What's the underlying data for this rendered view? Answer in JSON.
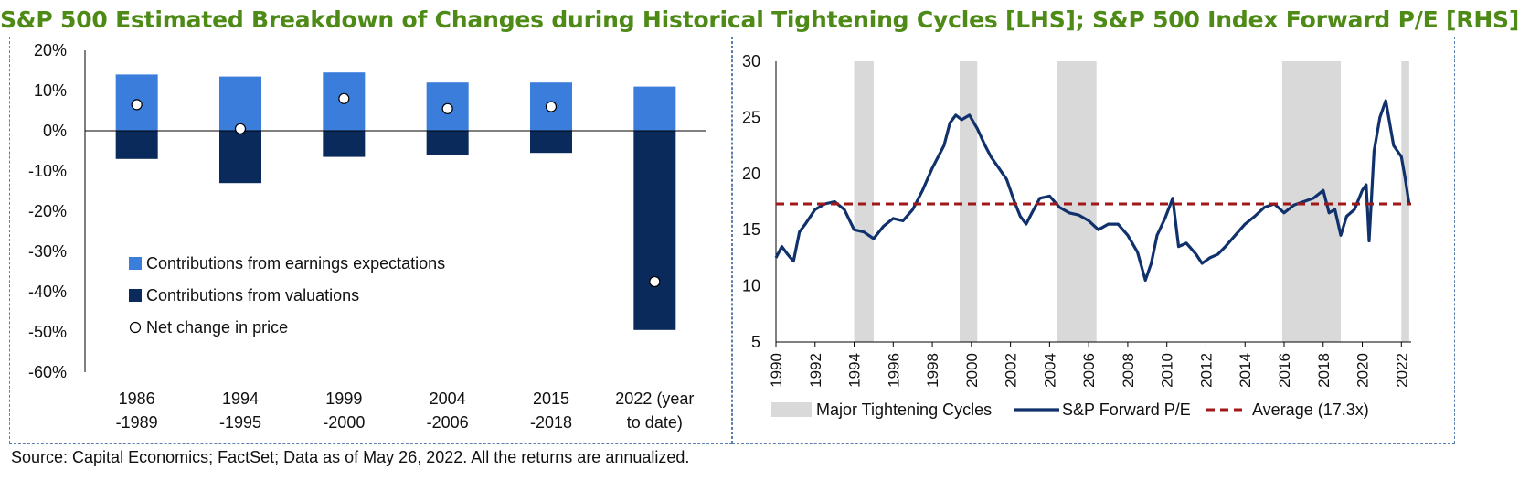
{
  "title": "S&P 500 Estimated Breakdown of Changes during Historical Tightening Cycles [LHS]; S&P 500 Index Forward P/E [RHS]",
  "source": "Source: Capital Economics; FactSet; Data as of May 26, 2022. All the returns are annualized.",
  "colors": {
    "earnings": "#3A7DDB",
    "valuations": "#0B2A5C",
    "pe_line": "#10316B",
    "average": "#A01818",
    "shade": "#D9D9D9",
    "title": "#4E8A16"
  },
  "chart_data": [
    {
      "type": "bar",
      "stacked": true,
      "categories": [
        [
          "1986",
          "-1989"
        ],
        [
          "1994",
          "-1995"
        ],
        [
          "1999",
          "-2000"
        ],
        [
          "2004",
          "-2006"
        ],
        [
          "2015",
          "-2018"
        ],
        [
          "2022 (year",
          "to date)"
        ]
      ],
      "series": [
        {
          "name": "Contributions from earnings expectations",
          "kind": "bar",
          "values": [
            14,
            13.5,
            14.5,
            12,
            12,
            11
          ]
        },
        {
          "name": "Contributions from valuations",
          "kind": "bar",
          "values": [
            -7,
            -13,
            -6.5,
            -6,
            -5.5,
            -49.5
          ]
        },
        {
          "name": "Net change in price",
          "kind": "marker",
          "values": [
            6.5,
            0.5,
            8,
            5.5,
            6,
            -37.5
          ]
        }
      ],
      "ylim": [
        -60,
        20
      ],
      "yticks": [
        20,
        10,
        0,
        -10,
        -20,
        -30,
        -40,
        -50,
        -60
      ],
      "ytick_labels": [
        "20%",
        "10%",
        "0%",
        "-10%",
        "-20%",
        "-30%",
        "-40%",
        "-50%",
        "-60%"
      ],
      "legend_position": "inside left-center",
      "grid": false
    },
    {
      "type": "line",
      "xlim": [
        1990,
        2022.5
      ],
      "ylim": [
        5,
        30
      ],
      "yticks": [
        30,
        25,
        20,
        15,
        10,
        5
      ],
      "xticks": [
        "1990",
        "1992",
        "1994",
        "1996",
        "1998",
        "2000",
        "2002",
        "2004",
        "2006",
        "2008",
        "2010",
        "2012",
        "2014",
        "2016",
        "2018",
        "2020",
        "2022"
      ],
      "shaded_periods": {
        "name": "Major Tightening Cycles",
        "ranges": [
          [
            1994.0,
            1995.0
          ],
          [
            1999.4,
            2000.3
          ],
          [
            2004.4,
            2006.4
          ],
          [
            2015.9,
            2018.9
          ],
          [
            2022.0,
            2022.4
          ]
        ]
      },
      "series": [
        {
          "name": "S&P Forward P/E",
          "x": [
            1990.0,
            1990.3,
            1990.6,
            1990.9,
            1991.2,
            1991.5,
            1992.0,
            1992.5,
            1993.0,
            1993.5,
            1994.0,
            1994.5,
            1995.0,
            1995.5,
            1996.0,
            1996.5,
            1997.0,
            1997.5,
            1998.0,
            1998.3,
            1998.6,
            1998.9,
            1999.2,
            1999.5,
            1999.9,
            2000.3,
            2000.7,
            2001.0,
            2001.4,
            2001.8,
            2002.2,
            2002.5,
            2002.8,
            2003.1,
            2003.5,
            2004.0,
            2004.5,
            2005.0,
            2005.5,
            2006.0,
            2006.5,
            2007.0,
            2007.5,
            2008.0,
            2008.5,
            2008.9,
            2009.2,
            2009.5,
            2009.9,
            2010.3,
            2010.6,
            2011.0,
            2011.5,
            2011.8,
            2012.2,
            2012.6,
            2013.0,
            2013.5,
            2014.0,
            2014.5,
            2015.0,
            2015.5,
            2016.0,
            2016.5,
            2017.0,
            2017.5,
            2018.0,
            2018.3,
            2018.6,
            2018.9,
            2019.2,
            2019.6,
            2020.0,
            2020.2,
            2020.35,
            2020.6,
            2020.9,
            2021.2,
            2021.6,
            2022.0,
            2022.2,
            2022.4
          ],
          "y": [
            12.5,
            13.5,
            12.8,
            12.2,
            14.8,
            15.5,
            16.8,
            17.3,
            17.5,
            16.8,
            15.0,
            14.8,
            14.2,
            15.3,
            16.0,
            15.8,
            16.8,
            18.5,
            20.5,
            21.5,
            22.5,
            24.5,
            25.2,
            24.8,
            25.2,
            24.0,
            22.5,
            21.5,
            20.5,
            19.5,
            17.5,
            16.2,
            15.5,
            16.5,
            17.8,
            18.0,
            17.0,
            16.5,
            16.3,
            15.8,
            15.0,
            15.5,
            15.5,
            14.5,
            13.0,
            10.5,
            12.0,
            14.5,
            16.0,
            17.8,
            13.5,
            13.8,
            12.8,
            12.0,
            12.5,
            12.8,
            13.5,
            14.5,
            15.5,
            16.2,
            17.0,
            17.3,
            16.5,
            17.2,
            17.5,
            17.8,
            18.5,
            16.5,
            16.8,
            14.5,
            16.2,
            16.8,
            18.5,
            19.0,
            14.0,
            22.0,
            25.0,
            26.5,
            22.5,
            21.5,
            19.5,
            17.2
          ]
        },
        {
          "name": "Average (17.3x)",
          "kind": "hline",
          "value": 17.3
        }
      ],
      "legend_position": "bottom",
      "grid": false
    }
  ]
}
